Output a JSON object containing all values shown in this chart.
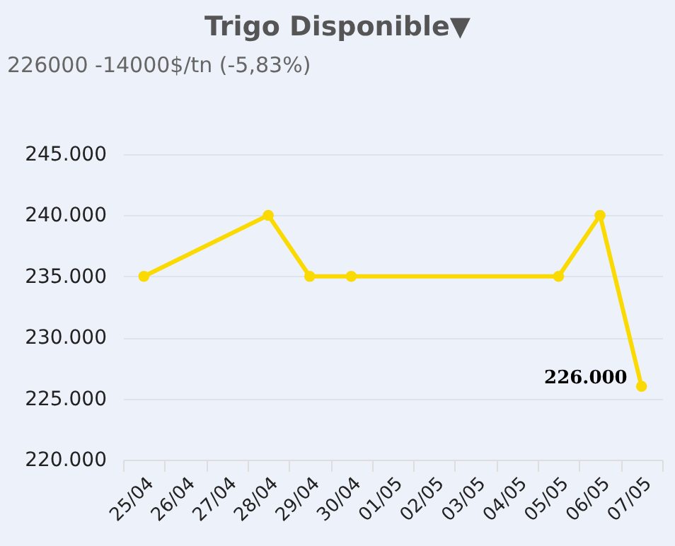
{
  "chart_data": {
    "type": "line",
    "title": "Trigo Disponible▼",
    "subtitle": "226000 -14000$/tn (-5,83%)",
    "categories": [
      "25/04",
      "26/04",
      "27/04",
      "28/04",
      "29/04",
      "30/04",
      "01/05",
      "02/05",
      "03/05",
      "04/05",
      "05/05",
      "06/05",
      "07/05"
    ],
    "series": [
      {
        "color": "#fada00",
        "values": [
          235000,
          null,
          null,
          240000,
          235000,
          235000,
          null,
          null,
          null,
          null,
          235000,
          240000,
          226000
        ],
        "value_labels": [
          null,
          null,
          null,
          null,
          null,
          null,
          null,
          null,
          null,
          null,
          null,
          null,
          "226.000"
        ]
      }
    ],
    "ylim": [
      220000,
      245000
    ],
    "yticks": [
      {
        "value": 220000,
        "label": "220.000"
      },
      {
        "value": 225000,
        "label": "225.000"
      },
      {
        "value": 230000,
        "label": "230.000"
      },
      {
        "value": 235000,
        "label": "235.000"
      },
      {
        "value": 240000,
        "label": "240.000"
      },
      {
        "value": 245000,
        "label": "245.000"
      }
    ],
    "grid": "y",
    "marker": "circle"
  }
}
